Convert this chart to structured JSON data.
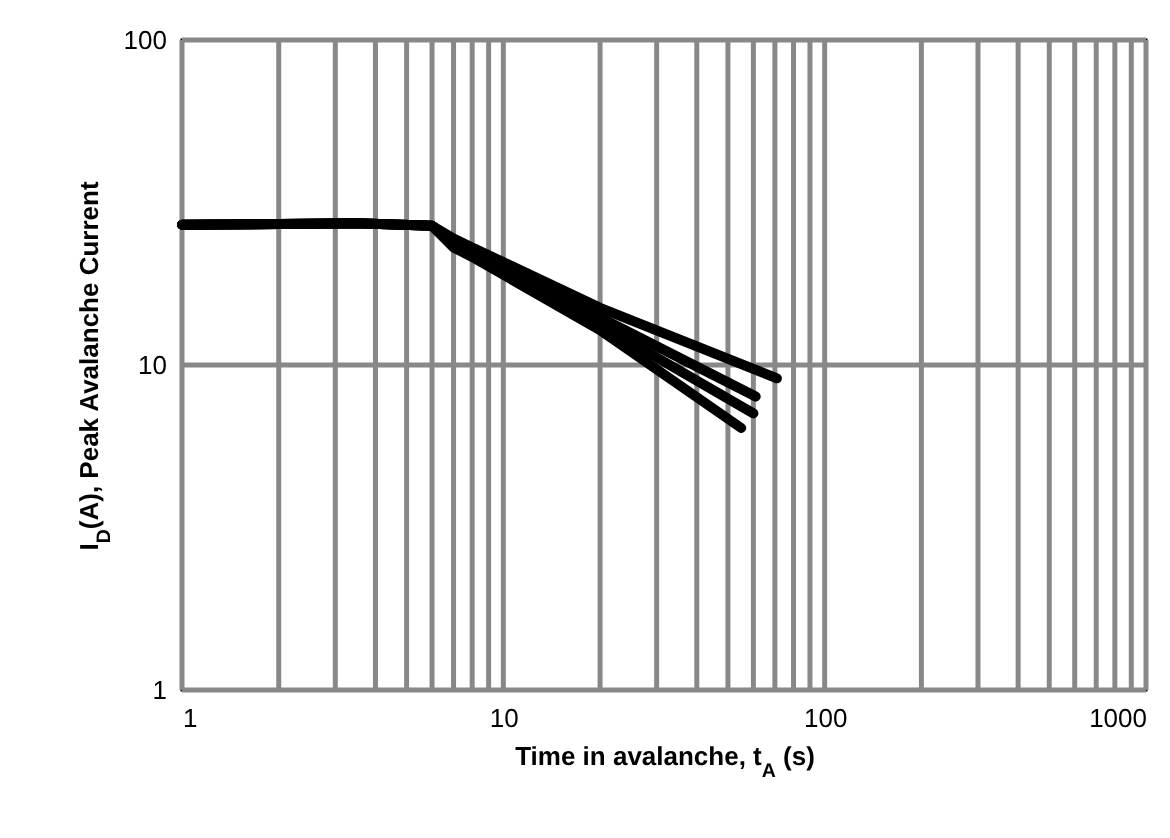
{
  "chart_data": {
    "type": "line",
    "xlabel": "Time in avalanche, t$_{A}$ (s)",
    "ylabel": "I$_{D}$(A), Peak Avalanche Current",
    "log": "xy",
    "grid": true,
    "line_style": "solid",
    "marker": "none",
    "xlim": [
      1,
      1000
    ],
    "xticks": [
      1,
      10,
      100,
      1000
    ],
    "ylim": [
      1,
      100
    ],
    "yticks": [
      1,
      10,
      100
    ],
    "series": [
      {
        "color": "#000000",
        "x": [
          1,
          3.5,
          6,
          7,
          8,
          20,
          71
        ],
        "values": [
          27,
          27.3,
          26.8,
          24.5,
          23,
          15,
          9.1
        ]
      },
      {
        "color": "#000000",
        "x": [
          1,
          3.5,
          6,
          7,
          8,
          20,
          61
        ],
        "values": [
          27,
          27.3,
          26.8,
          24,
          22.5,
          14,
          8
        ]
      },
      {
        "color": "#000000",
        "x": [
          1,
          3.5,
          6,
          7,
          8,
          20,
          60
        ],
        "values": [
          27,
          27.3,
          26.8,
          23.5,
          22,
          13.3,
          7.1
        ]
      },
      {
        "color": "#000000",
        "x": [
          1,
          3.5,
          6,
          7,
          8,
          20,
          55
        ],
        "values": [
          27,
          27.3,
          26.8,
          23,
          21.5,
          12.8,
          6.4
        ]
      }
    ]
  }
}
